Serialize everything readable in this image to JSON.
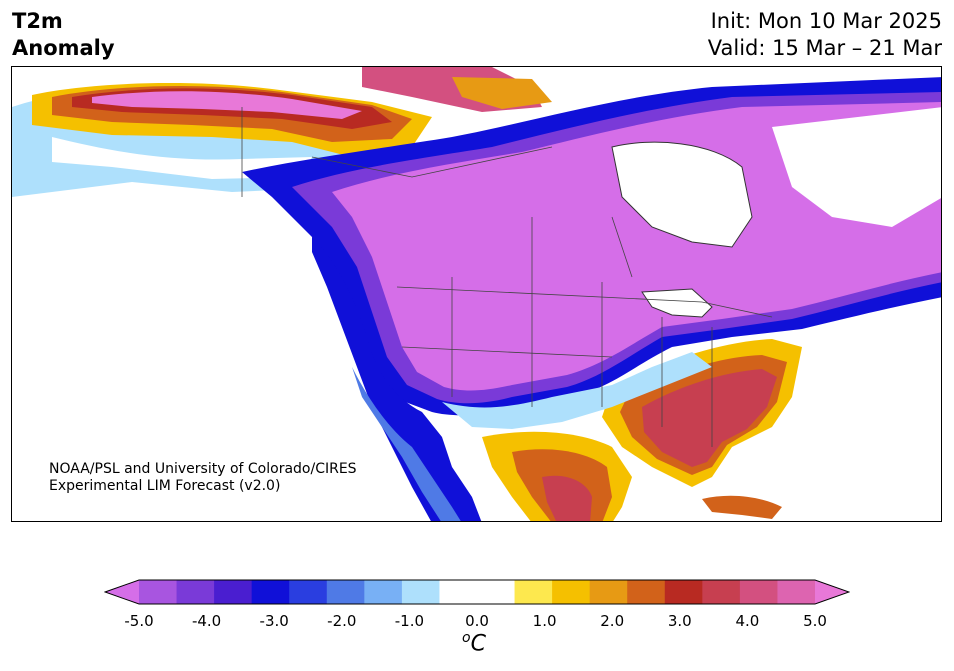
{
  "header": {
    "title_line1": "T2m",
    "title_line2": "Anomaly",
    "init": "Init: Mon 10 Mar 2025",
    "valid": "Valid: 15 Mar – 21 Mar"
  },
  "credit": {
    "line1": "NOAA/PSL and University of Colorado/CIRES",
    "line2": "Experimental LIM Forecast (v2.0)"
  },
  "colorbar": {
    "ticks": [
      "-5.0",
      "-4.0",
      "-3.0",
      "-2.0",
      "-1.0",
      "0.0",
      "1.0",
      "2.0",
      "3.0",
      "4.0",
      "5.0"
    ],
    "unit_sup": "o",
    "unit": "C",
    "colors": [
      "#d56ee8",
      "#a855e0",
      "#7a3ad8",
      "#4a1ed0",
      "#1010d8",
      "#2a3ee0",
      "#4f7ae6",
      "#78b0f5",
      "#aee0fc",
      "#ffffff",
      "#ffffff",
      "#fde84e",
      "#f5c000",
      "#e79a14",
      "#d2621a",
      "#b82a22",
      "#c73f50",
      "#d35080",
      "#dd64b0",
      "#e878d8"
    ]
  },
  "map": {
    "region": "North America",
    "levels_c": {
      "western_canada_north_coast": 3.0,
      "bc_coast_us_west_coast": -3.0,
      "central_us_and_canada": -5.0,
      "southeast_us": 3.5,
      "mexico_interior": 2.0,
      "alaska_interior": -1.0,
      "northeastern_canada": -5.0
    },
    "colors": {
      "strong_cold": "#d56ee8",
      "cold_band": "#1a1adc",
      "cool": "#78b0f5",
      "neutral": "#ffffff",
      "warm": "#f5c000",
      "hot": "#c73f50"
    }
  }
}
